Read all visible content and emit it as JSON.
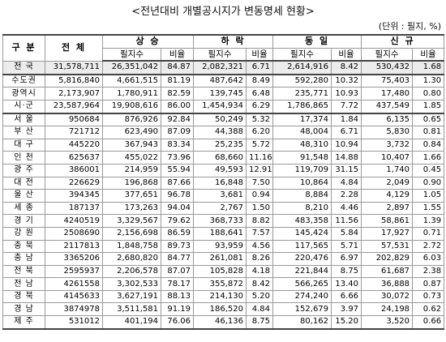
{
  "title": "<전년대비 개별공시지가 변동명세 현황>",
  "unit": "(단위 : 필지, %)",
  "table": {
    "header": [
      "구 분",
      "전 체",
      "상 승",
      "하 락",
      "동 일",
      "신 규"
    ],
    "subheader": [
      "필지수",
      "비율",
      "필지수",
      "비율",
      "필지수",
      "비율",
      "필지수",
      "비율"
    ],
    "rows": [
      [
        "전 국",
        "31,578,711",
        "26,351,042",
        "84.87",
        "2,082,321",
        "6.71",
        "2,614,916",
        "8.42",
        "530,432",
        "1.68"
      ],
      [
        "수도권",
        "5,816,840",
        "4,661,515",
        "81.19",
        "487,642",
        "8.49",
        "592,280",
        "10.32",
        "75,403",
        "1.30"
      ],
      [
        "광역시",
        "2,173,907",
        "1,780,911",
        "82.59",
        "139,745",
        "6.48",
        "235,771",
        "10.93",
        "17,480",
        "0.80"
      ],
      [
        "시·군",
        "23,587,964",
        "19,908,616",
        "86.00",
        "1,454,934",
        "6.29",
        "1,786,865",
        "7.72",
        "437,549",
        "1.85"
      ],
      [
        "서 울",
        "950684",
        "876,926",
        "92.84",
        "50,249",
        "5.32",
        "17,374",
        "1.84",
        "6,135",
        "0.65"
      ],
      [
        "부 산",
        "721712",
        "623,490",
        "87.09",
        "44,388",
        "6.20",
        "48,004",
        "6.71",
        "5,830",
        "0.81"
      ],
      [
        "대 구",
        "445220",
        "367,943",
        "83.34",
        "25,235",
        "5.72",
        "48,310",
        "10.94",
        "3,732",
        "0.84"
      ],
      [
        "인 천",
        "625637",
        "455,022",
        "73.96",
        "68,660",
        "11.16",
        "91,548",
        "14.88",
        "10,407",
        "1.66"
      ],
      [
        "광 주",
        "386001",
        "214,959",
        "55.94",
        "49,593",
        "12.91",
        "119,709",
        "31.15",
        "1,740",
        "0.45"
      ],
      [
        "대 전",
        "226629",
        "196,868",
        "87.66",
        "16,848",
        "7.50",
        "10,864",
        "4.84",
        "2,049",
        "0.90"
      ],
      [
        "울 산",
        "394345",
        "377,651",
        "96.78",
        "3,681",
        "0.94",
        "8,884",
        "2.28",
        "4,129",
        "1.05"
      ],
      [
        "세 종",
        "187137",
        "173,263",
        "94.04",
        "2,767",
        "1.50",
        "8,210",
        "4.46",
        "2,897",
        "1.55"
      ],
      [
        "경 기",
        "4240519",
        "3,329,567",
        "79.62",
        "368,733",
        "8.82",
        "483,358",
        "11.56",
        "58,861",
        "1.39"
      ],
      [
        "강 원",
        "2508690",
        "2,156,698",
        "86.59",
        "188,641",
        "7.57",
        "145,424",
        "5.84",
        "17,927",
        "0.71"
      ],
      [
        "충 북",
        "2117813",
        "1,848,758",
        "89.73",
        "93,959",
        "4.56",
        "117,565",
        "5.71",
        "57,531",
        "2.72"
      ],
      [
        "충 남",
        "3365206",
        "2,680,820",
        "84.77",
        "261,081",
        "8.26",
        "220,476",
        "6.97",
        "202,829",
        "6.03"
      ],
      [
        "전 북",
        "2595937",
        "2,206,578",
        "87.07",
        "105,828",
        "4.18",
        "221,844",
        "8.75",
        "61,687",
        "2.38"
      ],
      [
        "전 남",
        "4261558",
        "3,302,533",
        "78.17",
        "355,872",
        "8.42",
        "566,265",
        "13.40",
        "36,888",
        "0.87"
      ],
      [
        "경 북",
        "4145633",
        "3,627,191",
        "88.13",
        "214,130",
        "5.20",
        "274,240",
        "6.66",
        "30,072",
        "0.73"
      ],
      [
        "경 남",
        "3874978",
        "3,511,581",
        "91.19",
        "186,520",
        "4.84",
        "152,679",
        "3.97",
        "24,198",
        "0.62"
      ],
      [
        "제 주",
        "531012",
        "401,194",
        "76.06",
        "46,136",
        "8.75",
        "80,162",
        "15.20",
        "3,520",
        "0.66"
      ]
    ]
  }
}
